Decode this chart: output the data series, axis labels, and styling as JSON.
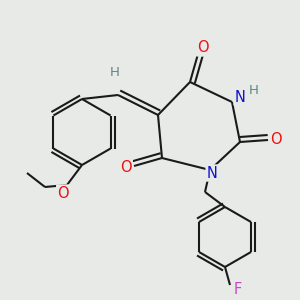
{
  "bg_color": "#e8eae8",
  "bond_color": "#1a1a1a",
  "bond_width": 1.5,
  "atom_colors": {
    "O": "#ee1111",
    "N": "#1111cc",
    "F": "#cc44cc",
    "H_label": "#5c8888",
    "C": "#1a1a1a"
  },
  "font_size_atom": 10.5
}
